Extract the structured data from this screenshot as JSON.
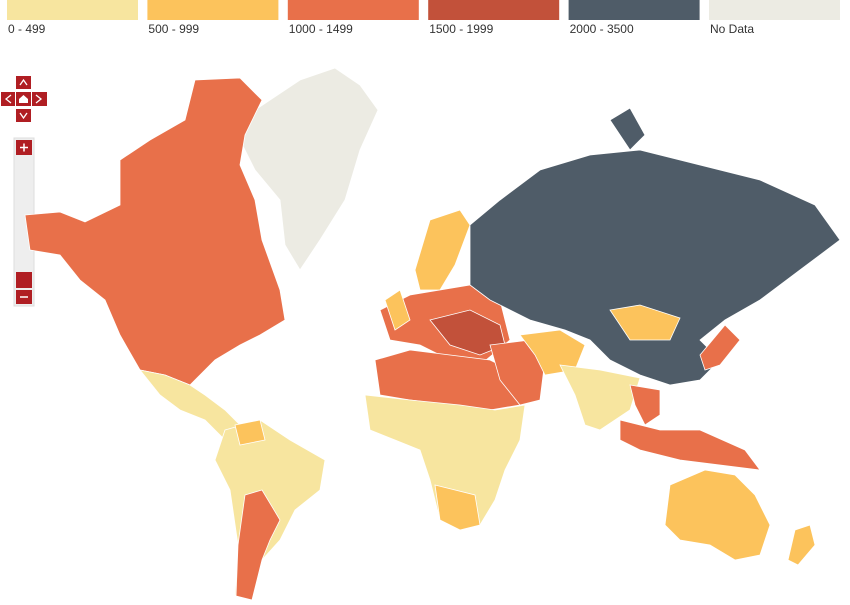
{
  "legend": [
    {
      "label": "0 - 499",
      "color": "#f7e59f"
    },
    {
      "label": "500 - 999",
      "color": "#fcc35c"
    },
    {
      "label": "1000 - 1499",
      "color": "#e8704a"
    },
    {
      "label": "1500 - 1999",
      "color": "#c2513a"
    },
    {
      "label": "2000 - 3500",
      "color": "#4f5c68"
    },
    {
      "label": "No Data",
      "color": "#ecebe3"
    }
  ]
}
